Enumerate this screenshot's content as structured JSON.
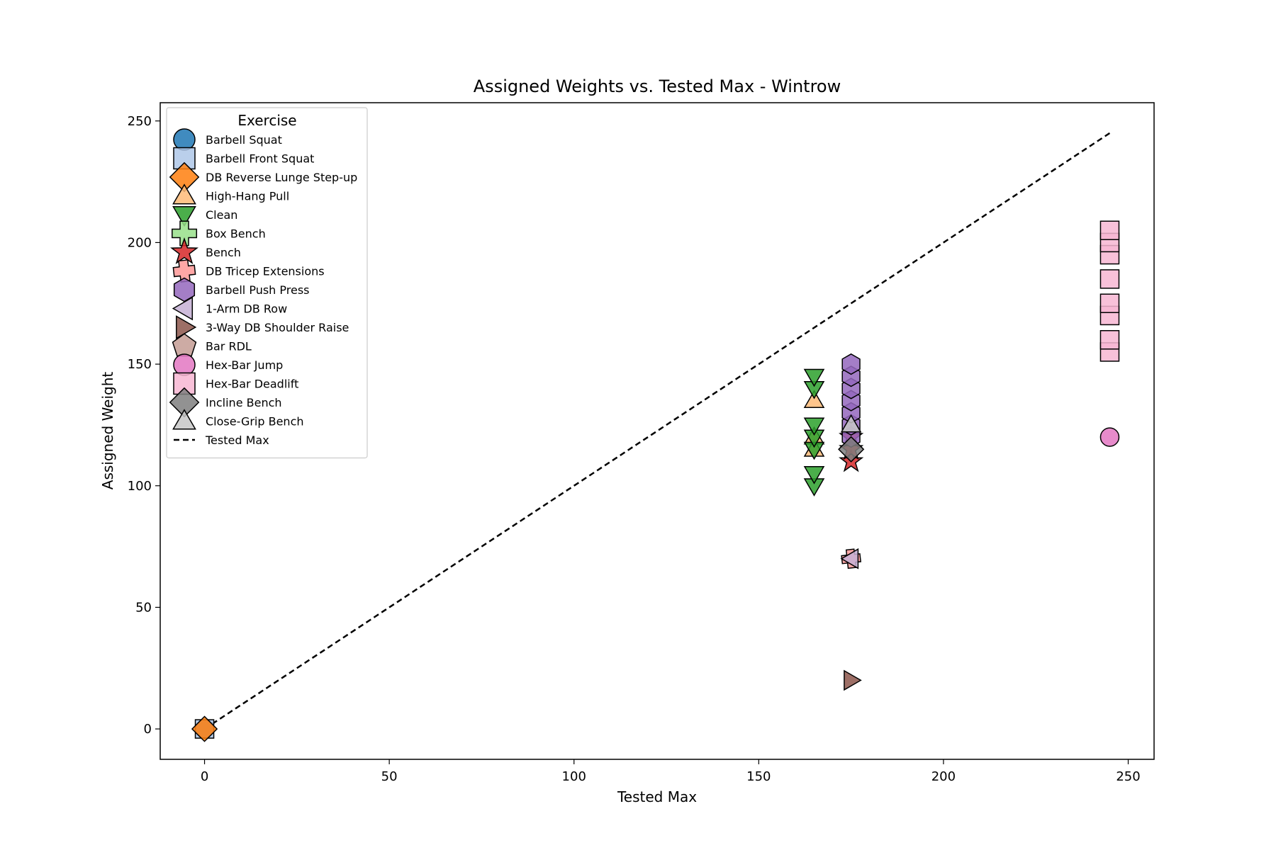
{
  "chart_data": {
    "type": "scatter",
    "title": "Assigned Weights vs. Tested Max - Wintrow",
    "xlabel": "Tested Max",
    "ylabel": "Assigned Weight",
    "xlim": [
      -12,
      257
    ],
    "ylim": [
      -12.5,
      257.5
    ],
    "xticks": [
      0,
      50,
      100,
      150,
      200,
      250
    ],
    "yticks": [
      0,
      50,
      100,
      150,
      200,
      250
    ],
    "grid": false,
    "legend": {
      "title": "Exercise",
      "placement": "upper-left"
    },
    "series": [
      {
        "name": "Barbell Squat",
        "color": "#1f77b4",
        "marker": "circle",
        "points": [
          [
            0,
            0
          ]
        ]
      },
      {
        "name": "Barbell Front Squat",
        "color": "#aec7e8",
        "marker": "square",
        "points": [
          [
            0,
            0
          ]
        ]
      },
      {
        "name": "DB Reverse Lunge Step-up",
        "color": "#ff7f0e",
        "marker": "diamond",
        "points": [
          [
            0,
            0
          ]
        ]
      },
      {
        "name": "High-Hang Pull",
        "color": "#ffbb78",
        "marker": "triangle-up",
        "points": [
          [
            165,
            115
          ],
          [
            165,
            120
          ],
          [
            165,
            135
          ]
        ]
      },
      {
        "name": "Clean",
        "color": "#2ca02c",
        "marker": "triangle-down",
        "points": [
          [
            165,
            100
          ],
          [
            165,
            105
          ],
          [
            165,
            115
          ],
          [
            165,
            120
          ],
          [
            165,
            125
          ],
          [
            165,
            140
          ],
          [
            165,
            145
          ]
        ]
      },
      {
        "name": "Box Bench",
        "color": "#98df8a",
        "marker": "plus",
        "points": []
      },
      {
        "name": "Bench",
        "color": "#d62728",
        "marker": "star",
        "points": [
          [
            175,
            110
          ],
          [
            175,
            115
          ],
          [
            175,
            120
          ]
        ]
      },
      {
        "name": "DB Tricep Extensions",
        "color": "#ff9896",
        "marker": "x",
        "points": [
          [
            175,
            70
          ]
        ]
      },
      {
        "name": "Barbell Push Press",
        "color": "#9467bd",
        "marker": "hexagon",
        "points": [
          [
            175,
            120
          ],
          [
            175,
            125
          ],
          [
            175,
            130
          ],
          [
            175,
            135
          ],
          [
            175,
            140
          ],
          [
            175,
            145
          ],
          [
            175,
            150
          ]
        ]
      },
      {
        "name": "1-Arm DB Row",
        "color": "#c5b0d5",
        "marker": "triangle-left",
        "points": [
          [
            175,
            70
          ]
        ]
      },
      {
        "name": "3-Way DB Shoulder Raise",
        "color": "#8c564b",
        "marker": "triangle-right",
        "points": [
          [
            175,
            20
          ]
        ]
      },
      {
        "name": "Bar RDL",
        "color": "#c49c94",
        "marker": "pentagon",
        "points": []
      },
      {
        "name": "Hex-Bar Jump",
        "color": "#e377c2",
        "marker": "circle",
        "points": [
          [
            245,
            120
          ]
        ]
      },
      {
        "name": "Hex-Bar Deadlift",
        "color": "#f7b6d2",
        "marker": "square",
        "points": [
          [
            245,
            155
          ],
          [
            245,
            160
          ],
          [
            245,
            170
          ],
          [
            245,
            175
          ],
          [
            245,
            185
          ],
          [
            245,
            195
          ],
          [
            245,
            200
          ],
          [
            245,
            205
          ]
        ]
      },
      {
        "name": "Incline Bench",
        "color": "#7f7f7f",
        "marker": "diamond",
        "points": [
          [
            175,
            115
          ]
        ]
      },
      {
        "name": "Close-Grip Bench",
        "color": "#c7c7c7",
        "marker": "triangle-up",
        "points": [
          [
            175,
            125
          ]
        ]
      }
    ],
    "reference_line": {
      "name": "Tested Max",
      "style": "dashed",
      "color": "#000000",
      "from": [
        0,
        0
      ],
      "to": [
        245,
        245
      ]
    }
  }
}
